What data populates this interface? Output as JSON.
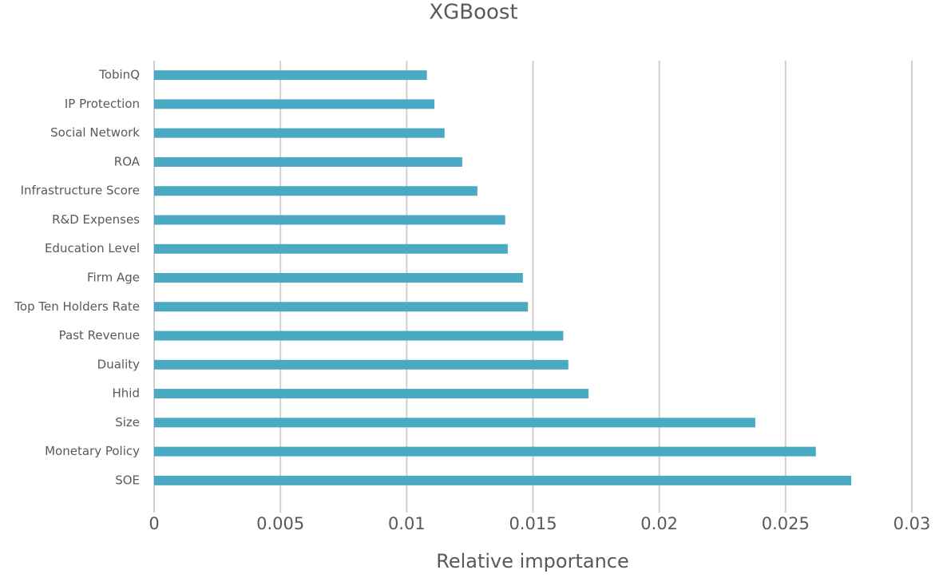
{
  "chart_data": {
    "type": "bar",
    "orientation": "horizontal",
    "title": "XGBoost",
    "x_label": "Relative importance",
    "categories": [
      "TobinQ",
      "IP Protection",
      "Social Network",
      "ROA",
      "Infrastructure Score",
      "R&D Expenses",
      "Education Level",
      "Firm Age",
      "Top Ten Holders Rate",
      "Past Revenue",
      "Duality",
      "Hhid",
      "Size",
      "Monetary Policy",
      "SOE"
    ],
    "values": [
      0.0108,
      0.0111,
      0.0115,
      0.0122,
      0.0128,
      0.0139,
      0.014,
      0.0146,
      0.0148,
      0.0162,
      0.0164,
      0.0172,
      0.0238,
      0.0262,
      0.0276
    ],
    "color": "#4aaac4",
    "xlim": [
      0,
      0.03
    ],
    "xticks": [
      0,
      0.005,
      0.01,
      0.015,
      0.02,
      0.025,
      0.03
    ],
    "grid": true
  }
}
